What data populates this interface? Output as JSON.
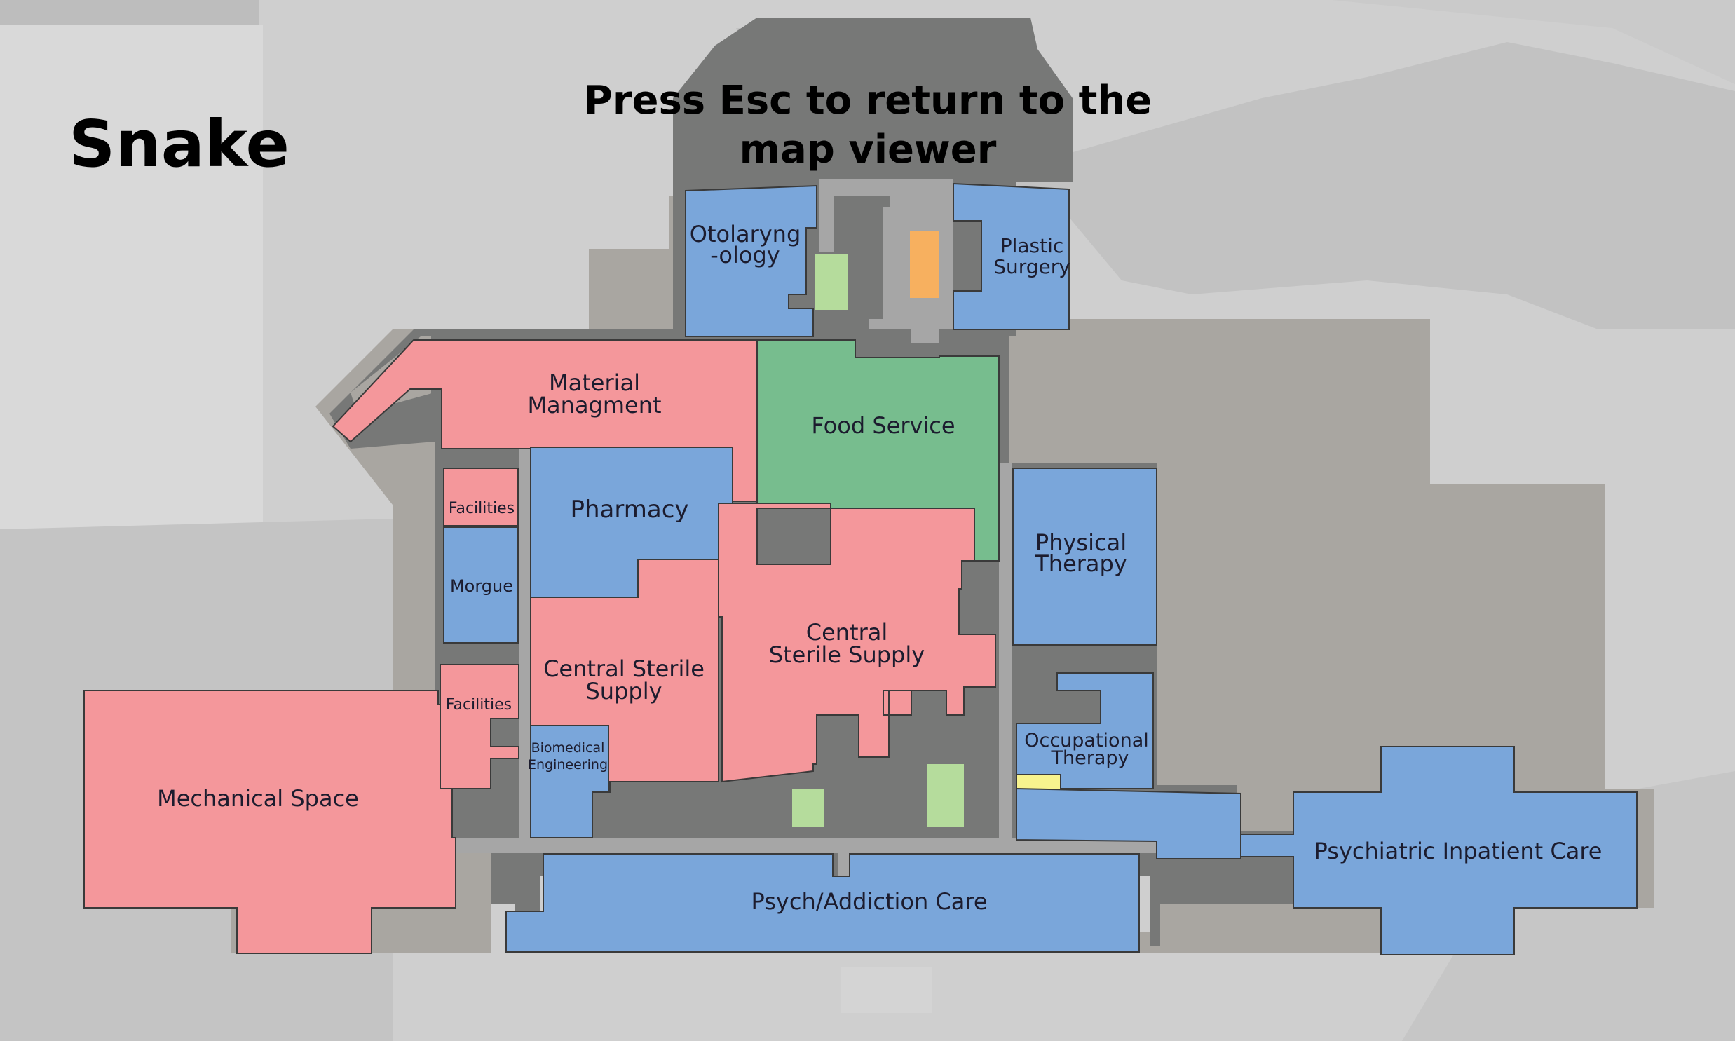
{
  "title": "Snake",
  "instruction": {
    "line1": "Press Esc to return to the",
    "line2": "map viewer"
  },
  "colors": {
    "background": "#cfcfcf",
    "building_base": "#a9a6a1",
    "corridor": "#777877",
    "hallway": "#a6a6a6",
    "blue_clinical": "#7aa6da",
    "red_support": "#f4979b",
    "green_food": "#77bd8e",
    "light_green": "#b5dc9c",
    "orange": "#f7b05f",
    "yellow": "#f7f38e"
  },
  "rooms": {
    "otolaryngology": {
      "line1": "Otolaryng",
      "line2": "-ology"
    },
    "plastic_surgery": {
      "line1": "Plastic",
      "line2": "Surgery"
    },
    "material_management": {
      "line1": "Material",
      "line2": "Managment"
    },
    "food_service": "Food Service",
    "pharmacy": "Pharmacy",
    "facilities_upper": "Facilities",
    "morgue": "Morgue",
    "facilities_lower": "Facilities",
    "central_sterile_left": {
      "line1": "Central Sterile",
      "line2": "Supply"
    },
    "central_sterile_right": {
      "line1": "Central",
      "line2": "Sterile Supply"
    },
    "biomedical_engineering": {
      "line1": "Biomedical",
      "line2": "Engineering"
    },
    "physical_therapy": {
      "line1": "Physical",
      "line2": "Therapy"
    },
    "occupational_therapy": {
      "line1": "Occupational",
      "line2": "Therapy"
    },
    "mechanical_space": "Mechanical Space",
    "psych_addiction_care": "Psych/Addiction Care",
    "psychiatric_inpatient_care": "Psychiatric Inpatient Care"
  }
}
